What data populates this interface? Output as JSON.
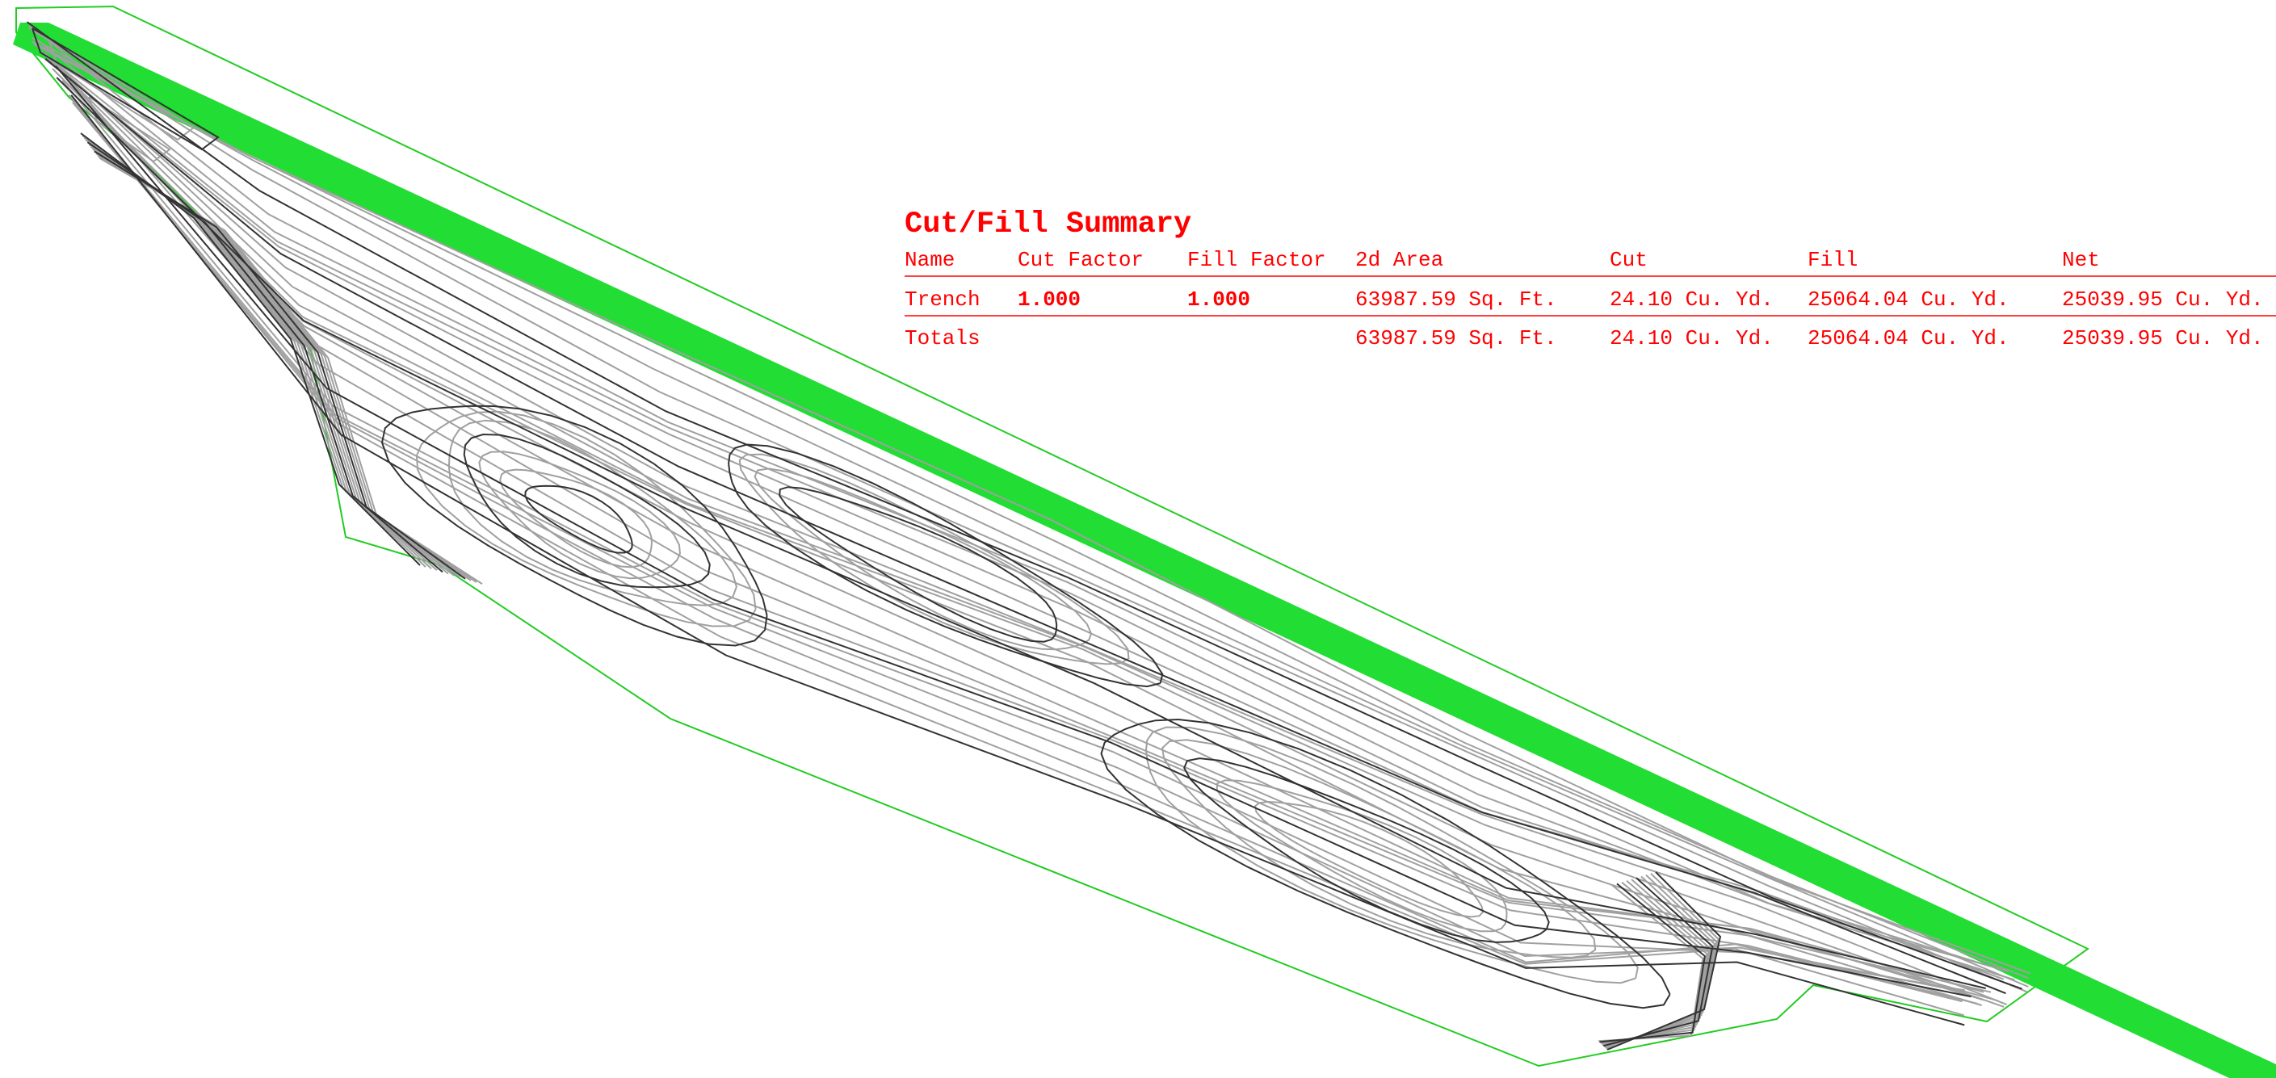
{
  "colors": {
    "boundary": "#22cc22",
    "corridor": "#22dd33",
    "contour_major": "#333333",
    "contour_minor": "#a0a0a0",
    "table_text": "#ff0000"
  },
  "summary": {
    "title": "Cut/Fill Summary",
    "headers": {
      "name": "Name",
      "cut_factor": "Cut Factor",
      "fill_factor": "Fill Factor",
      "area": "2d Area",
      "cut": "Cut",
      "fill": "Fill",
      "net": "Net"
    },
    "rows": [
      {
        "name": "Trench",
        "cut_factor": "1.000",
        "fill_factor": "1.000",
        "area": "63987.59 Sq. Ft.",
        "cut": "24.10 Cu. Yd.",
        "fill": "25064.04 Cu. Yd.",
        "net": "25039.95 Cu. Yd."
      }
    ],
    "totals": {
      "name": "Totals",
      "area": "63987.59 Sq. Ft.",
      "cut": "24.10 Cu. Yd.",
      "fill": "25064.04 Cu. Yd.",
      "net": "25039.95 Cu. Yd."
    }
  }
}
